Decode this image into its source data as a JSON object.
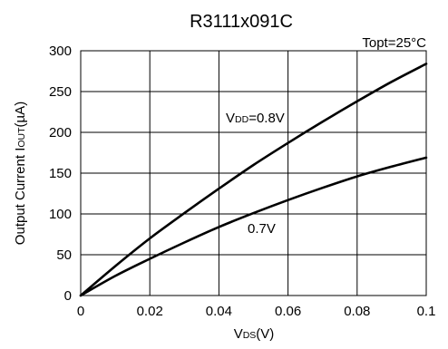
{
  "chart_data": {
    "type": "line",
    "title": "R3111x091C",
    "condition": "Topt=25°C",
    "xlabel": {
      "main": "V",
      "sub": "DS",
      "suffix": "(V)"
    },
    "ylabel": {
      "prefix": "Output Current I",
      "sub": "OUT",
      "suffix": "(µA)"
    },
    "xlim": [
      0,
      0.1
    ],
    "ylim": [
      0,
      300
    ],
    "x_ticks": [
      "0",
      "0.02",
      "0.04",
      "0.06",
      "0.08",
      "0.1"
    ],
    "y_ticks": [
      "0",
      "50",
      "100",
      "150",
      "200",
      "250",
      "300"
    ],
    "grid": true,
    "x": [
      0,
      0.01,
      0.02,
      0.03,
      0.04,
      0.05,
      0.06,
      0.07,
      0.08,
      0.09,
      0.1
    ],
    "series": [
      {
        "label": {
          "main": "V",
          "sub": "DD",
          "suffix": "=0.8V"
        },
        "color": "#000000",
        "values": [
          0,
          36,
          70,
          101,
          131,
          160,
          187,
          213,
          238,
          262,
          284
        ]
      },
      {
        "label": {
          "main": "0.7V",
          "sub": "",
          "suffix": ""
        },
        "color": "#000000",
        "values": [
          0,
          24,
          45,
          65,
          84,
          101,
          117,
          132,
          146,
          158,
          169
        ]
      }
    ]
  }
}
